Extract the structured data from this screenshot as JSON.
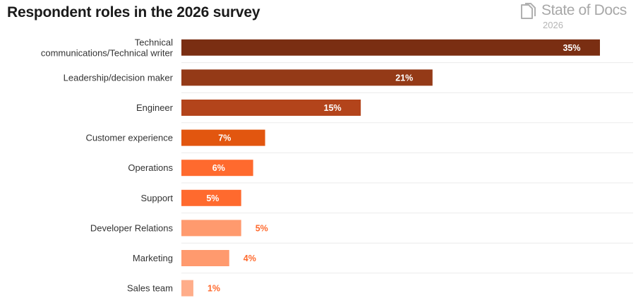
{
  "header": {
    "title": "Respondent roles in the 2026 survey",
    "brand_name": "State of Docs",
    "brand_year": "2026",
    "brand_icon": "document-stack-icon"
  },
  "chart_data": {
    "type": "bar",
    "orientation": "horizontal",
    "title": "Respondent roles in the 2026 survey",
    "xlabel": "",
    "ylabel": "",
    "xlim": [
      0,
      35
    ],
    "grid": false,
    "legend": "none",
    "categories": [
      "Technical communications/Technical writer",
      "Leadership/decision maker",
      "Engineer",
      "Customer experience",
      "Operations",
      "Support",
      "Developer Relations",
      "Marketing",
      "Sales team"
    ],
    "values": [
      35,
      21,
      15,
      7,
      6,
      5,
      5,
      4,
      1
    ],
    "data_labels": [
      "35%",
      "21%",
      "15%",
      "7%",
      "6%",
      "5%",
      "5%",
      "4%",
      "1%"
    ],
    "colors": [
      "#7a2e12",
      "#943a17",
      "#b3441b",
      "#e2560f",
      "#ff6a2e",
      "#ff6a2e",
      "#ff9a6e",
      "#ff9a6e",
      "#ffad8a"
    ],
    "label_colors": [
      "#ffffff",
      "#ffffff",
      "#ffffff",
      "#ffffff",
      "#ffffff",
      "#ffffff",
      "#ff6a2e",
      "#ff6a2e",
      "#ff6a2e"
    ],
    "label_inside": [
      true,
      true,
      true,
      true,
      true,
      true,
      false,
      false,
      false
    ]
  }
}
